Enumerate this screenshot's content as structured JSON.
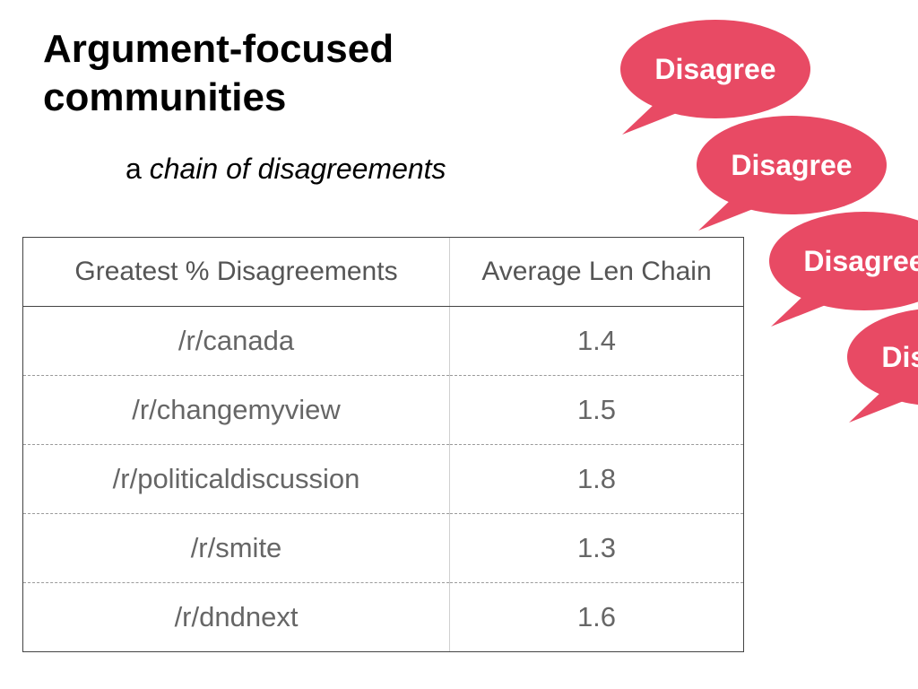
{
  "slide": {
    "title_line1": "Argument-focused",
    "title_line2": "communities",
    "subtitle_prefix": "a ",
    "subtitle_emphasis": "chain of disagreements"
  },
  "bubbles": {
    "color": "#E84A64",
    "text_color": "#FFFFFF",
    "labels": [
      "Disagree",
      "Disagree",
      "Disagree",
      "Disagree"
    ]
  },
  "table": {
    "headers": [
      "Greatest % Disagreements",
      "Average Len Chain"
    ],
    "rows": [
      [
        "/r/canada",
        "1.4"
      ],
      [
        "/r/changemyview",
        "1.5"
      ],
      [
        "/r/politicaldiscussion",
        "1.8"
      ],
      [
        "/r/smite",
        "1.3"
      ],
      [
        "/r/dndnext",
        "1.6"
      ]
    ]
  }
}
